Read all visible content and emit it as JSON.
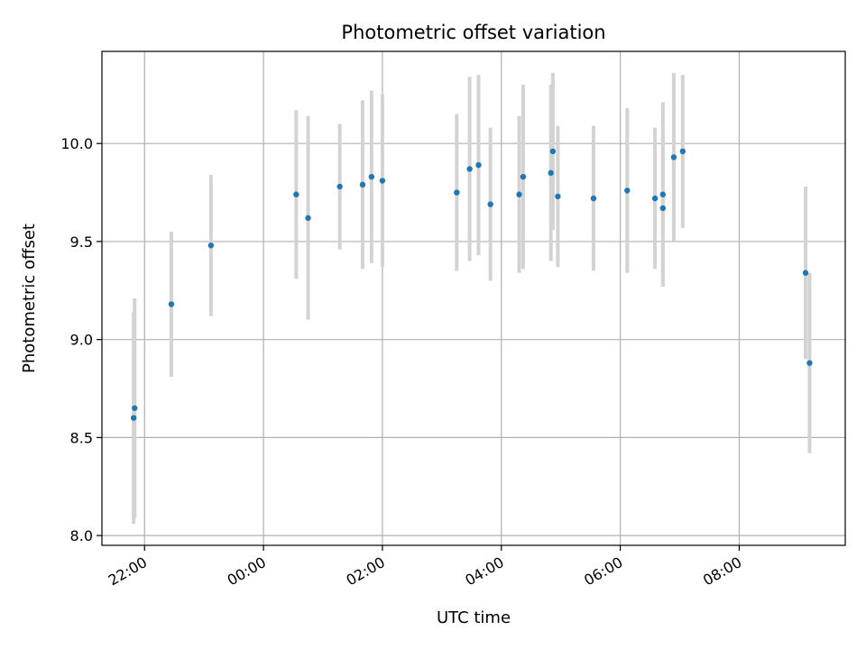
{
  "chart_data": {
    "type": "scatter",
    "title": "Photometric offset variation",
    "xlabel": "UTC time",
    "ylabel": "Photometric offset",
    "grid": true,
    "x_ticks": [
      "22:00",
      "00:00",
      "02:00",
      "04:00",
      "06:00",
      "08:00"
    ],
    "y_ticks": [
      "8.0",
      "8.5",
      "9.0",
      "9.5",
      "10.0"
    ],
    "xlim": [
      "21:17",
      "09:47"
    ],
    "ylim": [
      7.95,
      10.47
    ],
    "colors": {
      "point": "#1f77b4",
      "errorbar": "#d3d3d3",
      "grid": "#b0b0b0"
    },
    "points": [
      {
        "time": "21:49",
        "y": 8.6,
        "err": 0.54
      },
      {
        "time": "21:50",
        "y": 8.65,
        "err": 0.56
      },
      {
        "time": "22:27",
        "y": 9.18,
        "err": 0.37
      },
      {
        "time": "23:07",
        "y": 9.48,
        "err": 0.36
      },
      {
        "time": "00:33",
        "y": 9.74,
        "err": 0.43
      },
      {
        "time": "00:45",
        "y": 9.62,
        "err": 0.52
      },
      {
        "time": "01:17",
        "y": 9.78,
        "err": 0.32
      },
      {
        "time": "01:40",
        "y": 9.79,
        "err": 0.43
      },
      {
        "time": "01:49",
        "y": 9.83,
        "err": 0.44
      },
      {
        "time": "02:00",
        "y": 9.81,
        "err": 0.44
      },
      {
        "time": "03:15",
        "y": 9.75,
        "err": 0.4
      },
      {
        "time": "03:28",
        "y": 9.87,
        "err": 0.47
      },
      {
        "time": "03:37",
        "y": 9.89,
        "err": 0.46
      },
      {
        "time": "03:49",
        "y": 9.69,
        "err": 0.39
      },
      {
        "time": "04:18",
        "y": 9.74,
        "err": 0.4
      },
      {
        "time": "04:22",
        "y": 9.83,
        "err": 0.47
      },
      {
        "time": "04:50",
        "y": 9.85,
        "err": 0.45
      },
      {
        "time": "04:52",
        "y": 9.96,
        "err": 0.4
      },
      {
        "time": "04:57",
        "y": 9.73,
        "err": 0.36
      },
      {
        "time": "05:33",
        "y": 9.72,
        "err": 0.37
      },
      {
        "time": "06:07",
        "y": 9.76,
        "err": 0.42
      },
      {
        "time": "06:35",
        "y": 9.72,
        "err": 0.36
      },
      {
        "time": "06:43",
        "y": 9.74,
        "err": 0.47
      },
      {
        "time": "06:43",
        "y": 9.67,
        "err": 0.4
      },
      {
        "time": "06:54",
        "y": 9.93,
        "err": 0.43
      },
      {
        "time": "07:03",
        "y": 9.96,
        "err": 0.39
      },
      {
        "time": "09:07",
        "y": 9.34,
        "err": 0.44
      },
      {
        "time": "09:11",
        "y": 8.88,
        "err": 0.46
      }
    ]
  }
}
